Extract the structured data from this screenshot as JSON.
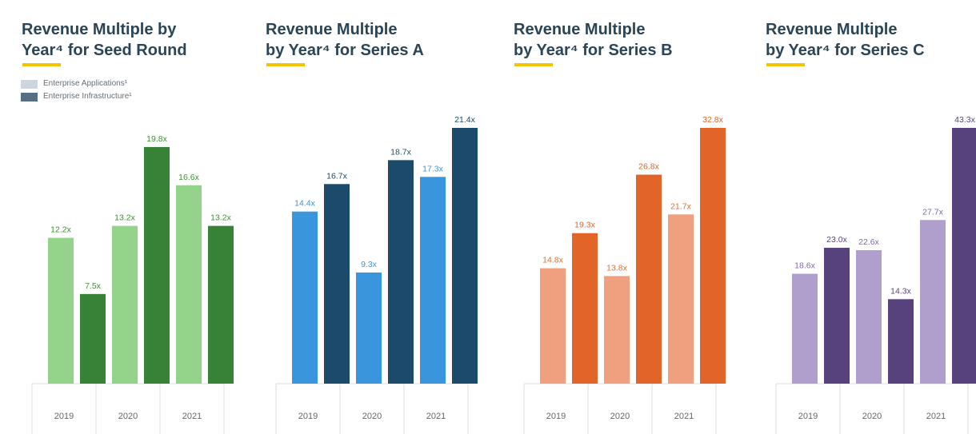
{
  "legend": {
    "items": [
      {
        "label": "Enterprise Applications¹",
        "color": "#cdd6de"
      },
      {
        "label": "Enterprise Infrastructure¹",
        "color": "#566f85"
      }
    ]
  },
  "colors": {
    "underline": "#f2c500",
    "title": "#2b4456",
    "axis_text": "#666666",
    "grid": "#dddddd"
  },
  "chart_data": [
    {
      "type": "bar",
      "title": "Revenue Multiple by\nYear⁴ for Seed Round",
      "categories": [
        "2019",
        "2020",
        "2021"
      ],
      "series": [
        {
          "name": "Enterprise Applications¹",
          "color": "#94d38a",
          "label_color": "#3f8f36",
          "values": [
            12.2,
            13.2,
            16.6
          ],
          "labels": [
            "12.2x",
            "13.2x",
            "16.6x"
          ]
        },
        {
          "name": "Enterprise Infrastructure¹",
          "color": "#388237",
          "label_color": "#3f8f36",
          "values": [
            7.5,
            19.8,
            13.2
          ],
          "labels": [
            "7.5x",
            "19.8x",
            "13.2x"
          ]
        }
      ],
      "ylim": [
        0,
        21.4
      ]
    },
    {
      "type": "bar",
      "title": "Revenue Multiple\nby Year⁴ for Series A",
      "categories": [
        "2019",
        "2020",
        "2021"
      ],
      "series": [
        {
          "name": "Enterprise Applications¹",
          "color": "#3b95dc",
          "label_color": "#3b95dc",
          "values": [
            14.4,
            9.3,
            17.3
          ],
          "labels": [
            "14.4x",
            "9.3x",
            "17.3x"
          ]
        },
        {
          "name": "Enterprise Infrastructure¹",
          "color": "#1c4a6b",
          "label_color": "#1c4a6b",
          "values": [
            16.7,
            18.7,
            21.4
          ],
          "labels": [
            "16.7x",
            "18.7x",
            "21.4x"
          ]
        }
      ],
      "ylim": [
        0,
        21.4
      ]
    },
    {
      "type": "bar",
      "title": "Revenue Multiple\nby Year⁴ for Series B",
      "categories": [
        "2019",
        "2020",
        "2021"
      ],
      "series": [
        {
          "name": "Enterprise Applications¹",
          "color": "#f0a07e",
          "label_color": "#e0722f",
          "values": [
            14.8,
            13.8,
            21.7
          ],
          "labels": [
            "14.8x",
            "13.8x",
            "21.7x"
          ]
        },
        {
          "name": "Enterprise Infrastructure¹",
          "color": "#e36428",
          "label_color": "#e36428",
          "values": [
            19.3,
            26.8,
            32.8
          ],
          "labels": [
            "19.3x",
            "26.8x",
            "32.8x"
          ]
        }
      ],
      "ylim": [
        0,
        32.8
      ]
    },
    {
      "type": "bar",
      "title": "Revenue Multiple\nby Year⁴ for Series C",
      "categories": [
        "2019",
        "2020",
        "2021"
      ],
      "series": [
        {
          "name": "Enterprise Applications¹",
          "color": "#b09fcd",
          "label_color": "#7e6aa8",
          "values": [
            18.6,
            22.6,
            27.7
          ],
          "labels": [
            "18.6x",
            "22.6x",
            "27.7x"
          ]
        },
        {
          "name": "Enterprise Infrastructure¹",
          "color": "#58427e",
          "label_color": "#58427e",
          "values": [
            23.0,
            14.3,
            43.3
          ],
          "labels": [
            "23.0x",
            "14.3x",
            "43.3x"
          ]
        }
      ],
      "ylim": [
        0,
        43.3
      ]
    }
  ]
}
